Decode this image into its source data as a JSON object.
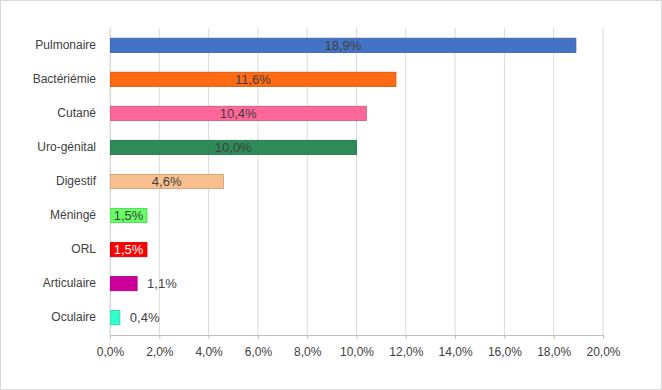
{
  "chart_data": {
    "type": "bar",
    "orientation": "horizontal",
    "categories": [
      "Pulmonaire",
      "Bactériémie",
      "Cutané",
      "Uro-génital",
      "Digestif",
      "Méningé",
      "ORL",
      "Articulaire",
      "Oculaire"
    ],
    "values": [
      18.9,
      11.6,
      10.4,
      10.0,
      4.6,
      1.5,
      1.5,
      1.1,
      0.4
    ],
    "value_labels": [
      "18,9%",
      "11,6%",
      "10,4%",
      "10,0%",
      "4,6%",
      "1,5%",
      "1,5%",
      "1,1%",
      "0,4%"
    ],
    "colors": [
      "#4472c4",
      "#ff6a13",
      "#ff6699",
      "#2e8b57",
      "#f9c08f",
      "#66ff66",
      "#ff0000",
      "#cc0099",
      "#33ffcc"
    ],
    "xlim": [
      0,
      20
    ],
    "xticks": [
      {
        "value": 0,
        "label": "0,0%"
      },
      {
        "value": 2,
        "label": "2,0%"
      },
      {
        "value": 4,
        "label": "4,0%"
      },
      {
        "value": 6,
        "label": "6,0%"
      },
      {
        "value": 8,
        "label": "8,0%"
      },
      {
        "value": 10,
        "label": "10,0%"
      },
      {
        "value": 12,
        "label": "12,0%"
      },
      {
        "value": 14,
        "label": "14,0%"
      },
      {
        "value": 16,
        "label": "16,0%"
      },
      {
        "value": 18,
        "label": "18,0%"
      },
      {
        "value": 20,
        "label": "20,0%"
      }
    ],
    "grid": true,
    "data_labels": true
  }
}
